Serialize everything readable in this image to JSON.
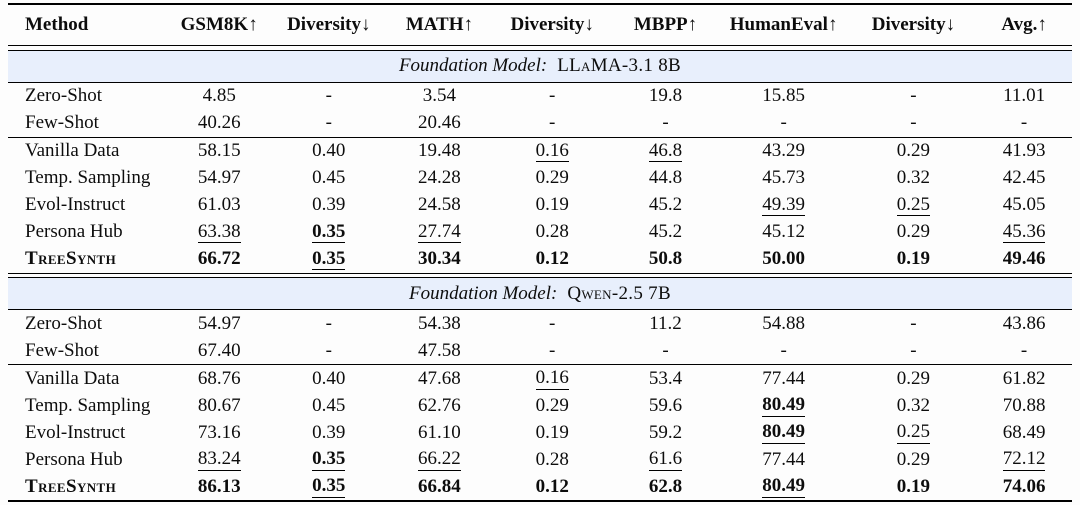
{
  "table": {
    "columns": [
      "Method",
      "GSM8K↑",
      "Diversity↓",
      "MATH↑",
      "Diversity↓",
      "MBPP↑",
      "HumanEval↑",
      "Diversity↓",
      "Avg.↑"
    ],
    "sections": [
      {
        "title_prefix": "Foundation Model:",
        "title_model": "LLaMA-3.1 8B",
        "baselines": [
          {
            "method": {
              "v": "Zero-Shot",
              "f": ""
            },
            "values": [
              {
                "v": "4.85",
                "f": ""
              },
              {
                "v": "-",
                "f": ""
              },
              {
                "v": "3.54",
                "f": ""
              },
              {
                "v": "-",
                "f": ""
              },
              {
                "v": "19.8",
                "f": ""
              },
              {
                "v": "15.85",
                "f": ""
              },
              {
                "v": "-",
                "f": ""
              },
              {
                "v": "11.01",
                "f": ""
              }
            ]
          },
          {
            "method": {
              "v": "Few-Shot",
              "f": ""
            },
            "values": [
              {
                "v": "40.26",
                "f": ""
              },
              {
                "v": "-",
                "f": ""
              },
              {
                "v": "20.46",
                "f": ""
              },
              {
                "v": "-",
                "f": ""
              },
              {
                "v": "-",
                "f": ""
              },
              {
                "v": "-",
                "f": ""
              },
              {
                "v": "-",
                "f": ""
              },
              {
                "v": "-",
                "f": ""
              }
            ]
          }
        ],
        "methods": [
          {
            "method": {
              "v": "Vanilla Data",
              "f": ""
            },
            "values": [
              {
                "v": "58.15",
                "f": ""
              },
              {
                "v": "0.40",
                "f": ""
              },
              {
                "v": "19.48",
                "f": ""
              },
              {
                "v": "0.16",
                "f": "u"
              },
              {
                "v": "46.8",
                "f": "u"
              },
              {
                "v": "43.29",
                "f": ""
              },
              {
                "v": "0.29",
                "f": ""
              },
              {
                "v": "41.93",
                "f": ""
              }
            ]
          },
          {
            "method": {
              "v": "Temp. Sampling",
              "f": ""
            },
            "values": [
              {
                "v": "54.97",
                "f": ""
              },
              {
                "v": "0.45",
                "f": ""
              },
              {
                "v": "24.28",
                "f": ""
              },
              {
                "v": "0.29",
                "f": ""
              },
              {
                "v": "44.8",
                "f": ""
              },
              {
                "v": "45.73",
                "f": ""
              },
              {
                "v": "0.32",
                "f": ""
              },
              {
                "v": "42.45",
                "f": ""
              }
            ]
          },
          {
            "method": {
              "v": "Evol-Instruct",
              "f": ""
            },
            "values": [
              {
                "v": "61.03",
                "f": ""
              },
              {
                "v": "0.39",
                "f": ""
              },
              {
                "v": "24.58",
                "f": ""
              },
              {
                "v": "0.19",
                "f": ""
              },
              {
                "v": "45.2",
                "f": ""
              },
              {
                "v": "49.39",
                "f": "u"
              },
              {
                "v": "0.25",
                "f": "u"
              },
              {
                "v": "45.05",
                "f": ""
              }
            ]
          },
          {
            "method": {
              "v": "Persona Hub",
              "f": ""
            },
            "values": [
              {
                "v": "63.38",
                "f": "u"
              },
              {
                "v": "0.35",
                "f": "bu"
              },
              {
                "v": "27.74",
                "f": "u"
              },
              {
                "v": "0.28",
                "f": ""
              },
              {
                "v": "45.2",
                "f": ""
              },
              {
                "v": "45.12",
                "f": ""
              },
              {
                "v": "0.29",
                "f": ""
              },
              {
                "v": "45.36",
                "f": "u"
              }
            ]
          },
          {
            "method": {
              "v": "TreeSynth",
              "f": "b sc"
            },
            "values": [
              {
                "v": "66.72",
                "f": "b"
              },
              {
                "v": "0.35",
                "f": "bu"
              },
              {
                "v": "30.34",
                "f": "b"
              },
              {
                "v": "0.12",
                "f": "b"
              },
              {
                "v": "50.8",
                "f": "b"
              },
              {
                "v": "50.00",
                "f": "b"
              },
              {
                "v": "0.19",
                "f": "b"
              },
              {
                "v": "49.46",
                "f": "b"
              }
            ]
          }
        ]
      },
      {
        "title_prefix": "Foundation Model:",
        "title_model": "Qwen-2.5 7B",
        "baselines": [
          {
            "method": {
              "v": "Zero-Shot",
              "f": ""
            },
            "values": [
              {
                "v": "54.97",
                "f": ""
              },
              {
                "v": "-",
                "f": ""
              },
              {
                "v": "54.38",
                "f": ""
              },
              {
                "v": "-",
                "f": ""
              },
              {
                "v": "11.2",
                "f": ""
              },
              {
                "v": "54.88",
                "f": ""
              },
              {
                "v": "-",
                "f": ""
              },
              {
                "v": "43.86",
                "f": ""
              }
            ]
          },
          {
            "method": {
              "v": "Few-Shot",
              "f": ""
            },
            "values": [
              {
                "v": "67.40",
                "f": ""
              },
              {
                "v": "-",
                "f": ""
              },
              {
                "v": "47.58",
                "f": ""
              },
              {
                "v": "-",
                "f": ""
              },
              {
                "v": "-",
                "f": ""
              },
              {
                "v": "-",
                "f": ""
              },
              {
                "v": "-",
                "f": ""
              },
              {
                "v": "-",
                "f": ""
              }
            ]
          }
        ],
        "methods": [
          {
            "method": {
              "v": "Vanilla Data",
              "f": ""
            },
            "values": [
              {
                "v": "68.76",
                "f": ""
              },
              {
                "v": "0.40",
                "f": ""
              },
              {
                "v": "47.68",
                "f": ""
              },
              {
                "v": "0.16",
                "f": "u"
              },
              {
                "v": "53.4",
                "f": ""
              },
              {
                "v": "77.44",
                "f": ""
              },
              {
                "v": "0.29",
                "f": ""
              },
              {
                "v": "61.82",
                "f": ""
              }
            ]
          },
          {
            "method": {
              "v": "Temp. Sampling",
              "f": ""
            },
            "values": [
              {
                "v": "80.67",
                "f": ""
              },
              {
                "v": "0.45",
                "f": ""
              },
              {
                "v": "62.76",
                "f": ""
              },
              {
                "v": "0.29",
                "f": ""
              },
              {
                "v": "59.6",
                "f": ""
              },
              {
                "v": "80.49",
                "f": "bu"
              },
              {
                "v": "0.32",
                "f": ""
              },
              {
                "v": "70.88",
                "f": ""
              }
            ]
          },
          {
            "method": {
              "v": "Evol-Instruct",
              "f": ""
            },
            "values": [
              {
                "v": "73.16",
                "f": ""
              },
              {
                "v": "0.39",
                "f": ""
              },
              {
                "v": "61.10",
                "f": ""
              },
              {
                "v": "0.19",
                "f": ""
              },
              {
                "v": "59.2",
                "f": ""
              },
              {
                "v": "80.49",
                "f": "bu"
              },
              {
                "v": "0.25",
                "f": "u"
              },
              {
                "v": "68.49",
                "f": ""
              }
            ]
          },
          {
            "method": {
              "v": "Persona Hub",
              "f": ""
            },
            "values": [
              {
                "v": "83.24",
                "f": "u"
              },
              {
                "v": "0.35",
                "f": "bu"
              },
              {
                "v": "66.22",
                "f": "u"
              },
              {
                "v": "0.28",
                "f": ""
              },
              {
                "v": "61.6",
                "f": "u"
              },
              {
                "v": "77.44",
                "f": ""
              },
              {
                "v": "0.29",
                "f": ""
              },
              {
                "v": "72.12",
                "f": "u"
              }
            ]
          },
          {
            "method": {
              "v": "TreeSynth",
              "f": "b sc"
            },
            "values": [
              {
                "v": "86.13",
                "f": "b"
              },
              {
                "v": "0.35",
                "f": "bu"
              },
              {
                "v": "66.84",
                "f": "b"
              },
              {
                "v": "0.12",
                "f": "b"
              },
              {
                "v": "62.8",
                "f": "b"
              },
              {
                "v": "80.49",
                "f": "bu"
              },
              {
                "v": "0.19",
                "f": "b"
              },
              {
                "v": "74.06",
                "f": "b"
              }
            ]
          }
        ]
      }
    ],
    "colors": {
      "section_band_bg": "#e8effc",
      "rule_color": "#000000",
      "text_color": "#0d0d0d"
    }
  }
}
